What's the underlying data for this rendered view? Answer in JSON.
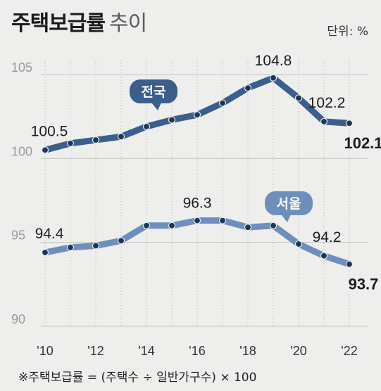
{
  "header": {
    "title": "주택보급률",
    "subtitle": "추이",
    "unit": "단위: %"
  },
  "footnote": "※주택보급률 = (주택수 ÷ 일반가구수) × 100",
  "colors": {
    "national": "#3a5f8c",
    "seoul": "#6e8fbc",
    "grid": "#c4c4c4",
    "axis_text": "#9a9a9a",
    "background": "#eeeeec"
  },
  "chart_data": {
    "type": "line",
    "x": [
      2010,
      2011,
      2012,
      2013,
      2014,
      2015,
      2016,
      2017,
      2018,
      2019,
      2020,
      2021,
      2022
    ],
    "x_tick_labels": [
      "'10",
      "'12",
      "'14",
      "'16",
      "'18",
      "'20",
      "'22"
    ],
    "x_tick_values": [
      2010,
      2012,
      2014,
      2016,
      2018,
      2020,
      2022
    ],
    "ylim": [
      90,
      106
    ],
    "y_ticks": [
      90,
      95,
      100,
      105
    ],
    "grid": {
      "horizontal": true,
      "vertical_dotted": true
    },
    "series": [
      {
        "name": "전국",
        "values": [
          100.5,
          100.9,
          101.1,
          101.3,
          101.9,
          102.3,
          102.6,
          103.3,
          104.2,
          104.8,
          103.6,
          102.2,
          102.1
        ],
        "labels": [
          {
            "x": 2010,
            "text": "100.5",
            "bold": false
          },
          {
            "x": 2019,
            "text": "104.8",
            "bold": false
          },
          {
            "x": 2021,
            "text": "102.2",
            "bold": false
          },
          {
            "x": 2022,
            "text": "102.1",
            "bold": true
          }
        ]
      },
      {
        "name": "서울",
        "values": [
          94.4,
          94.7,
          94.8,
          95.1,
          96.0,
          96.0,
          96.3,
          96.3,
          95.9,
          96.0,
          94.9,
          94.2,
          93.7
        ],
        "labels": [
          {
            "x": 2010,
            "text": "94.4",
            "bold": false
          },
          {
            "x": 2016,
            "text": "96.3",
            "bold": false
          },
          {
            "x": 2021,
            "text": "94.2",
            "bold": false
          },
          {
            "x": 2022,
            "text": "93.7",
            "bold": true
          }
        ]
      }
    ]
  }
}
